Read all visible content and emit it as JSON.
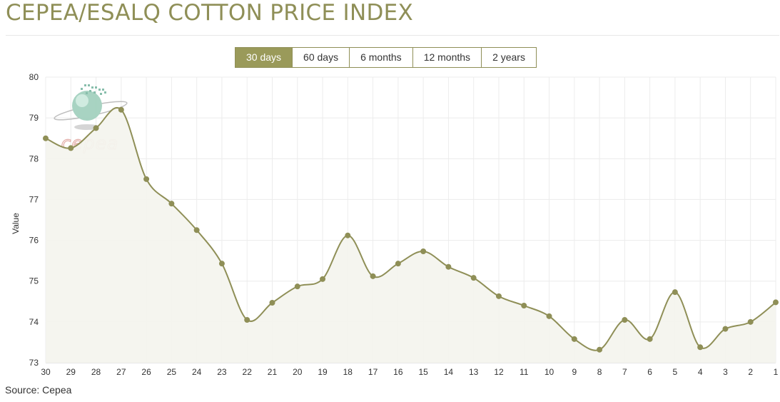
{
  "header": {
    "title": "CEPEA/ESALQ COTTON PRICE INDEX"
  },
  "range_tabs": [
    {
      "label": "30 days",
      "active": true
    },
    {
      "label": "60 days",
      "active": false
    },
    {
      "label": "6 months",
      "active": false
    },
    {
      "label": "12 months",
      "active": false
    },
    {
      "label": "2 years",
      "active": false
    }
  ],
  "footer": {
    "source": "Source: Cepea"
  },
  "watermark": {
    "text": "cepea"
  },
  "colors": {
    "accent": "#9a9a5a",
    "line": "#8f8f57",
    "area": "#f4f4ee",
    "grid": "#ececec"
  },
  "chart_data": {
    "type": "area",
    "ylabel": "Value",
    "xlabel": "",
    "ylim": [
      73,
      80
    ],
    "yticks": [
      73,
      74,
      75,
      76,
      77,
      78,
      79,
      80
    ],
    "grid": true,
    "categories": [
      "30",
      "29",
      "28",
      "27",
      "26",
      "25",
      "24",
      "23",
      "22",
      "21",
      "20",
      "19",
      "18",
      "17",
      "16",
      "15",
      "14",
      "13",
      "12",
      "11",
      "10",
      "9",
      "8",
      "7",
      "6",
      "5",
      "4",
      "3",
      "2",
      "1"
    ],
    "series": [
      {
        "values": [
          78.5,
          78.26,
          78.75,
          79.2,
          77.5,
          76.9,
          76.25,
          75.43,
          74.05,
          74.47,
          74.87,
          75.05,
          76.12,
          75.12,
          75.43,
          75.73,
          75.35,
          75.08,
          74.63,
          74.4,
          74.14,
          73.58,
          73.32,
          74.05,
          73.58,
          74.73,
          73.38,
          73.83,
          74.0,
          74.48
        ]
      }
    ]
  }
}
